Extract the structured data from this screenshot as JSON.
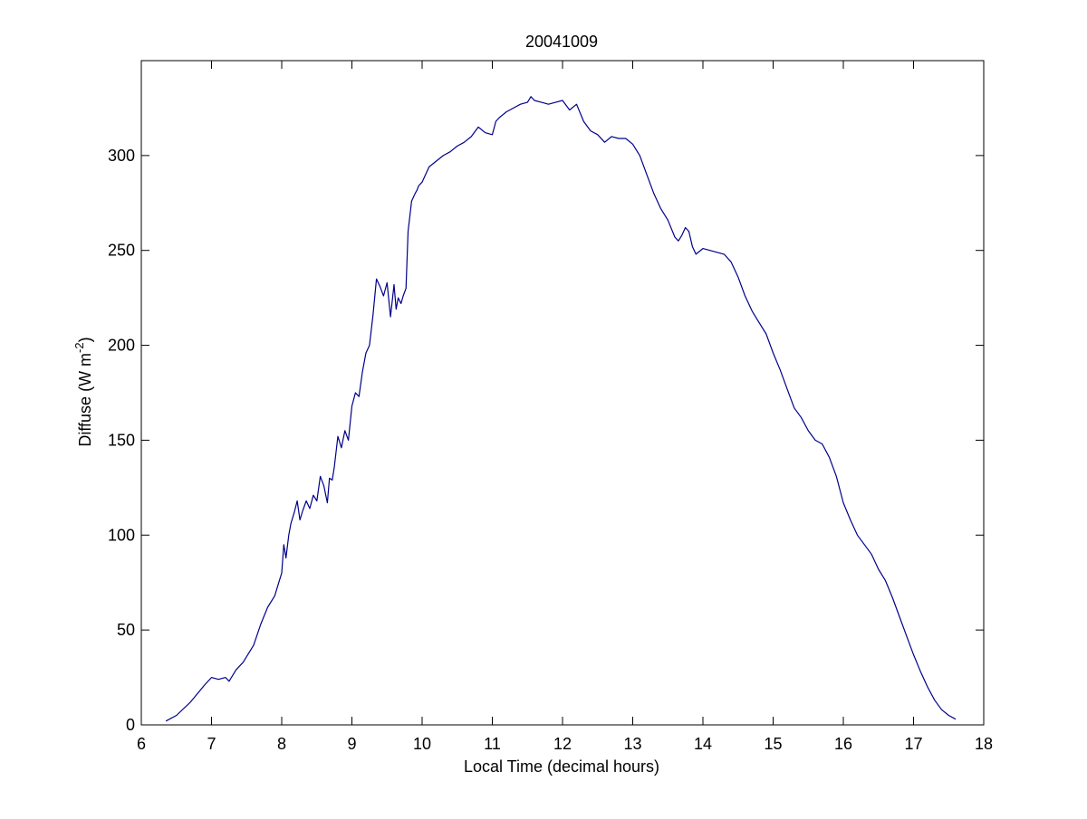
{
  "chart_data": {
    "type": "line",
    "title": "20041009",
    "xlabel": "Local Time (decimal hours)",
    "ylabel_main": "Diffuse (W m",
    "ylabel_sup": "-2",
    "ylabel_end": ")",
    "xlim": [
      6,
      18
    ],
    "ylim": [
      0,
      350
    ],
    "xticks": [
      6,
      7,
      8,
      9,
      10,
      11,
      12,
      13,
      14,
      15,
      16,
      17,
      18
    ],
    "yticks": [
      0,
      50,
      100,
      150,
      200,
      250,
      300
    ],
    "grid": false,
    "line_color": "#00008b",
    "series": [
      {
        "x": [
          6.35,
          6.5,
          6.7,
          6.9,
          7.0,
          7.1,
          7.2,
          7.25,
          7.35,
          7.45,
          7.6,
          7.7,
          7.8,
          7.9,
          7.95,
          8.0,
          8.03,
          8.06,
          8.1,
          8.13,
          8.18,
          8.22,
          8.26,
          8.3,
          8.35,
          8.4,
          8.45,
          8.5,
          8.55,
          8.6,
          8.65,
          8.68,
          8.72,
          8.75,
          8.8,
          8.85,
          8.9,
          8.95,
          9.0,
          9.05,
          9.1,
          9.15,
          9.2,
          9.25,
          9.3,
          9.35,
          9.4,
          9.45,
          9.5,
          9.55,
          9.6,
          9.63,
          9.66,
          9.7,
          9.73,
          9.77,
          9.8,
          9.85,
          9.9,
          9.93,
          9.95,
          10.0,
          10.1,
          10.2,
          10.3,
          10.4,
          10.5,
          10.6,
          10.7,
          10.8,
          10.9,
          11.0,
          11.05,
          11.1,
          11.2,
          11.3,
          11.4,
          11.5,
          11.55,
          11.6,
          11.7,
          11.8,
          11.9,
          12.0,
          12.1,
          12.2,
          12.3,
          12.4,
          12.5,
          12.6,
          12.7,
          12.8,
          12.9,
          13.0,
          13.1,
          13.2,
          13.3,
          13.4,
          13.5,
          13.6,
          13.65,
          13.7,
          13.75,
          13.8,
          13.85,
          13.9,
          14.0,
          14.1,
          14.2,
          14.3,
          14.4,
          14.5,
          14.6,
          14.7,
          14.8,
          14.9,
          15.0,
          15.1,
          15.2,
          15.3,
          15.4,
          15.5,
          15.6,
          15.7,
          15.8,
          15.9,
          16.0,
          16.1,
          16.2,
          16.3,
          16.4,
          16.5,
          16.6,
          16.7,
          16.8,
          16.9,
          17.0,
          17.1,
          17.2,
          17.3,
          17.4,
          17.5,
          17.6
        ],
        "y": [
          2,
          5,
          12,
          21,
          25,
          24,
          25,
          23,
          29,
          33,
          42,
          53,
          62,
          68,
          74,
          80,
          95,
          88,
          100,
          106,
          112,
          118,
          108,
          113,
          118,
          114,
          121,
          118,
          131,
          126,
          117,
          130,
          129,
          136,
          152,
          146,
          155,
          150,
          168,
          175,
          173,
          186,
          196,
          200,
          216,
          235,
          231,
          226,
          233,
          215,
          232,
          219,
          225,
          222,
          226,
          230,
          260,
          276,
          280,
          282,
          284,
          286,
          294,
          297,
          300,
          302,
          305,
          307,
          310,
          315,
          312,
          311,
          318,
          320,
          323,
          325,
          327,
          328,
          331,
          329,
          328,
          327,
          328,
          329,
          324,
          327,
          318,
          313,
          311,
          307,
          310,
          309,
          309,
          306,
          300,
          290,
          280,
          272,
          266,
          257,
          255,
          258,
          262,
          260,
          252,
          248,
          251,
          250,
          249,
          248,
          244,
          236,
          226,
          218,
          212,
          206,
          196,
          187,
          177,
          167,
          162,
          155,
          150,
          148,
          141,
          131,
          117,
          108,
          100,
          95,
          90,
          82,
          76,
          67,
          57,
          47,
          37,
          28,
          20,
          13,
          8,
          5,
          3
        ]
      }
    ]
  }
}
